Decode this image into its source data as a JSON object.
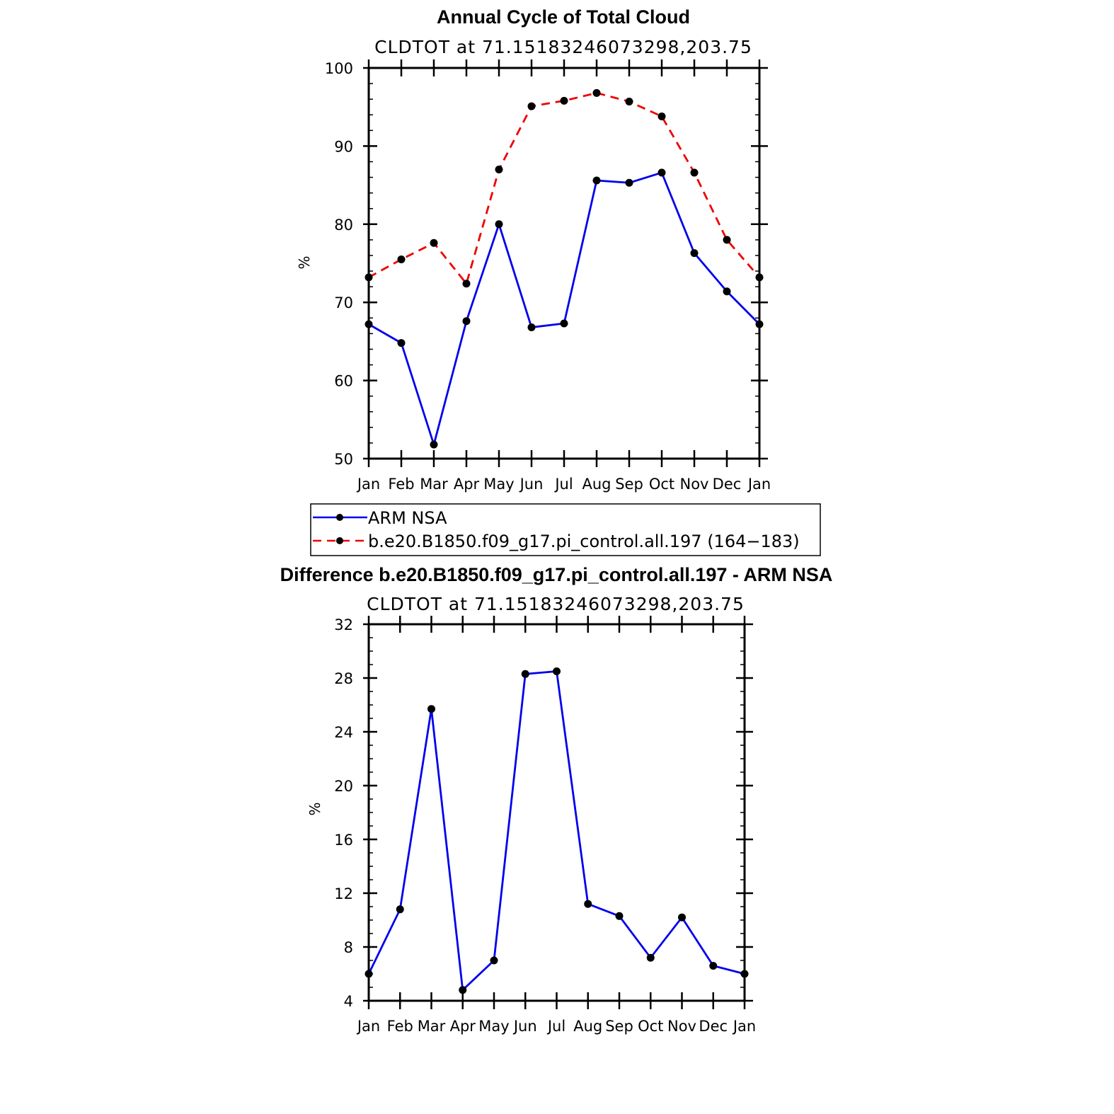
{
  "chart_data": [
    {
      "type": "line",
      "title": "Annual Cycle of Total Cloud",
      "subtitle": "CLDTOT at 71.15183246073298,203.75",
      "xlabel": "",
      "ylabel": "%",
      "categories": [
        "Jan",
        "Feb",
        "Mar",
        "Apr",
        "May",
        "Jun",
        "Jul",
        "Aug",
        "Sep",
        "Oct",
        "Nov",
        "Dec",
        "Jan"
      ],
      "ylim": [
        50,
        100
      ],
      "yticks": [
        "50",
        "60",
        "70",
        "80",
        "90",
        "100"
      ],
      "series": [
        {
          "name": "ARM NSA",
          "color": "#0000ee",
          "dash": "solid",
          "values": [
            67.2,
            64.8,
            51.8,
            67.6,
            80.0,
            66.8,
            67.3,
            85.6,
            85.3,
            86.6,
            76.3,
            71.4,
            67.2
          ]
        },
        {
          "name": "b.e20.B1850.f09_g17.pi_control.all.197 (164−183)",
          "color": "#ee0000",
          "dash": "dashed",
          "values": [
            73.2,
            75.5,
            77.6,
            72.4,
            87.0,
            95.1,
            95.8,
            96.8,
            95.7,
            93.8,
            86.6,
            78.0,
            73.2
          ]
        }
      ]
    },
    {
      "type": "line",
      "title": "Difference b.e20.B1850.f09_g17.pi_control.all.197 - ARM NSA",
      "subtitle": "CLDTOT at 71.15183246073298,203.75",
      "xlabel": "",
      "ylabel": "%",
      "categories": [
        "Jan",
        "Feb",
        "Mar",
        "Apr",
        "May",
        "Jun",
        "Jul",
        "Aug",
        "Sep",
        "Oct",
        "Nov",
        "Dec",
        "Jan"
      ],
      "ylim": [
        4,
        32
      ],
      "yticks": [
        "4",
        "8",
        "12",
        "16",
        "20",
        "24",
        "28",
        "32"
      ],
      "series": [
        {
          "name": "Difference",
          "color": "#0000ee",
          "dash": "solid",
          "values": [
            6.0,
            10.8,
            25.7,
            4.8,
            7.0,
            28.3,
            28.5,
            11.2,
            10.3,
            7.2,
            10.2,
            6.6,
            6.0
          ]
        }
      ]
    }
  ]
}
